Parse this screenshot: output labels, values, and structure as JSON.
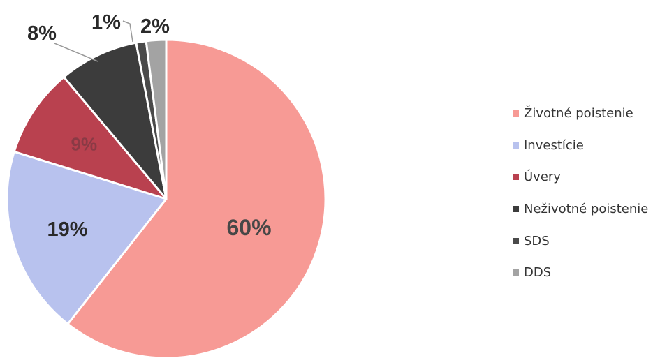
{
  "chart_data": {
    "type": "pie",
    "categories": [
      "Životné poistenie",
      "Investície",
      "Úvery",
      "Neživotné poistenie",
      "SDS",
      "DDS"
    ],
    "values": [
      60,
      19,
      9,
      8,
      1,
      2
    ],
    "data_labels": [
      "60%",
      "19%",
      "9%",
      "8%",
      "1%",
      "2%"
    ],
    "colors": [
      "#f79a95",
      "#b8c2ee",
      "#b9414f",
      "#3c3c3c",
      "#4a4a4a",
      "#a3a3a3"
    ],
    "label_colors": [
      "#474747",
      "#2a2a2a",
      "#8a3a45",
      "#2a2a2a",
      "#2a2a2a",
      "#2a2a2a"
    ],
    "start_angle_deg": 0,
    "direction": "clockwise",
    "legend_position": "right"
  }
}
